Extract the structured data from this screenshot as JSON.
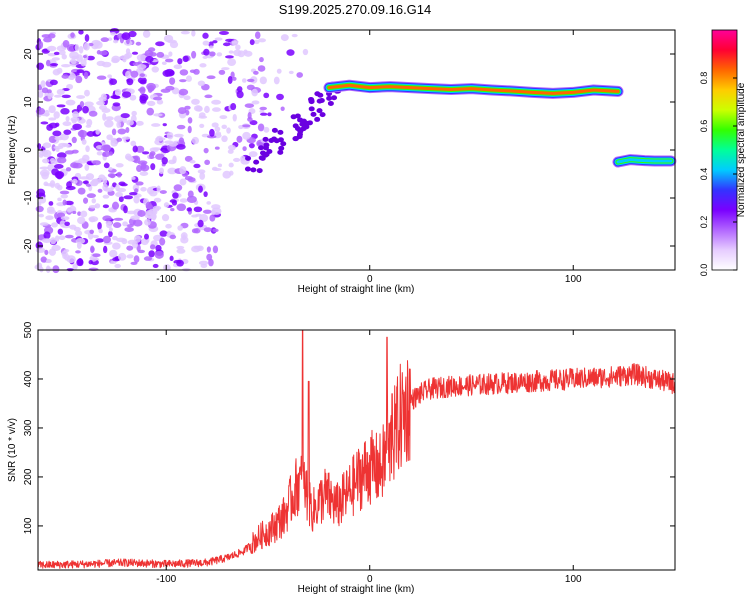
{
  "title": "S199.2025.270.09.16.G14",
  "chart_data": [
    {
      "type": "heatmap",
      "xlabel": "Height of straight line (km)",
      "ylabel": "Frequency (Hz)",
      "xlim": [
        -163,
        150
      ],
      "ylim": [
        -25,
        25
      ],
      "xticks": [
        -100,
        0,
        100
      ],
      "yticks": [
        -20,
        -10,
        0,
        10,
        20
      ],
      "colorbar": {
        "label": "Normalized spectral amplitude",
        "range": [
          0,
          1
        ],
        "ticks": [
          0.0,
          0.2,
          0.4,
          0.6,
          0.8
        ],
        "tick_labels": [
          "0.0",
          "0.2",
          "0.4",
          "0.6",
          "0.8"
        ],
        "colors": [
          "#ffffff",
          "#e6ccff",
          "#b266ff",
          "#7a00ff",
          "#3333ff",
          "#00ccff",
          "#00ff99",
          "#33ff00",
          "#ccff00",
          "#ffcc00",
          "#ff6600",
          "#ff0033",
          "#ff0099"
        ]
      },
      "tracks": [
        {
          "x": [
            -20,
            -10,
            0,
            10,
            20,
            30,
            40,
            50,
            60,
            70,
            80,
            90,
            100,
            110,
            122
          ],
          "y": [
            13,
            13.5,
            13,
            13.2,
            13,
            12.8,
            12.6,
            12.8,
            12.5,
            12.3,
            12,
            11.8,
            12,
            12.5,
            12.2
          ],
          "amplitude": 0.85
        },
        {
          "x": [
            122,
            128,
            135,
            140,
            148
          ],
          "y": [
            -2.5,
            -2,
            -2.2,
            -2.3,
            -2.3
          ],
          "amplitude": 0.45
        }
      ]
    },
    {
      "type": "line",
      "xlabel": "Height of straight line (km)",
      "ylabel": "SNR (10 * v/v)",
      "xlim": [
        -163,
        150
      ],
      "ylim": [
        10,
        500
      ],
      "xticks": [
        -100,
        0,
        100
      ],
      "yticks": [
        100,
        200,
        300,
        400,
        500
      ],
      "color": "#ee3333",
      "x": [
        -163,
        -140,
        -120,
        -100,
        -80,
        -70,
        -62,
        -55,
        -48,
        -42,
        -38,
        -35,
        -32,
        -28,
        -22,
        -16,
        -10,
        -5,
        0,
        5,
        10,
        15,
        20,
        25,
        30,
        40,
        60,
        80,
        100,
        120,
        130,
        140,
        150
      ],
      "y": [
        20,
        22,
        25,
        22,
        25,
        35,
        48,
        75,
        95,
        120,
        160,
        190,
        180,
        130,
        165,
        140,
        170,
        200,
        220,
        215,
        260,
        320,
        355,
        370,
        380,
        385,
        390,
        395,
        400,
        405,
        410,
        400,
        390
      ],
      "spikes": [
        {
          "x": -33,
          "y": 500
        },
        {
          "x": -30,
          "y": 395
        },
        {
          "x": 8.5,
          "y": 485
        },
        {
          "x": 11,
          "y": 370
        }
      ]
    }
  ]
}
